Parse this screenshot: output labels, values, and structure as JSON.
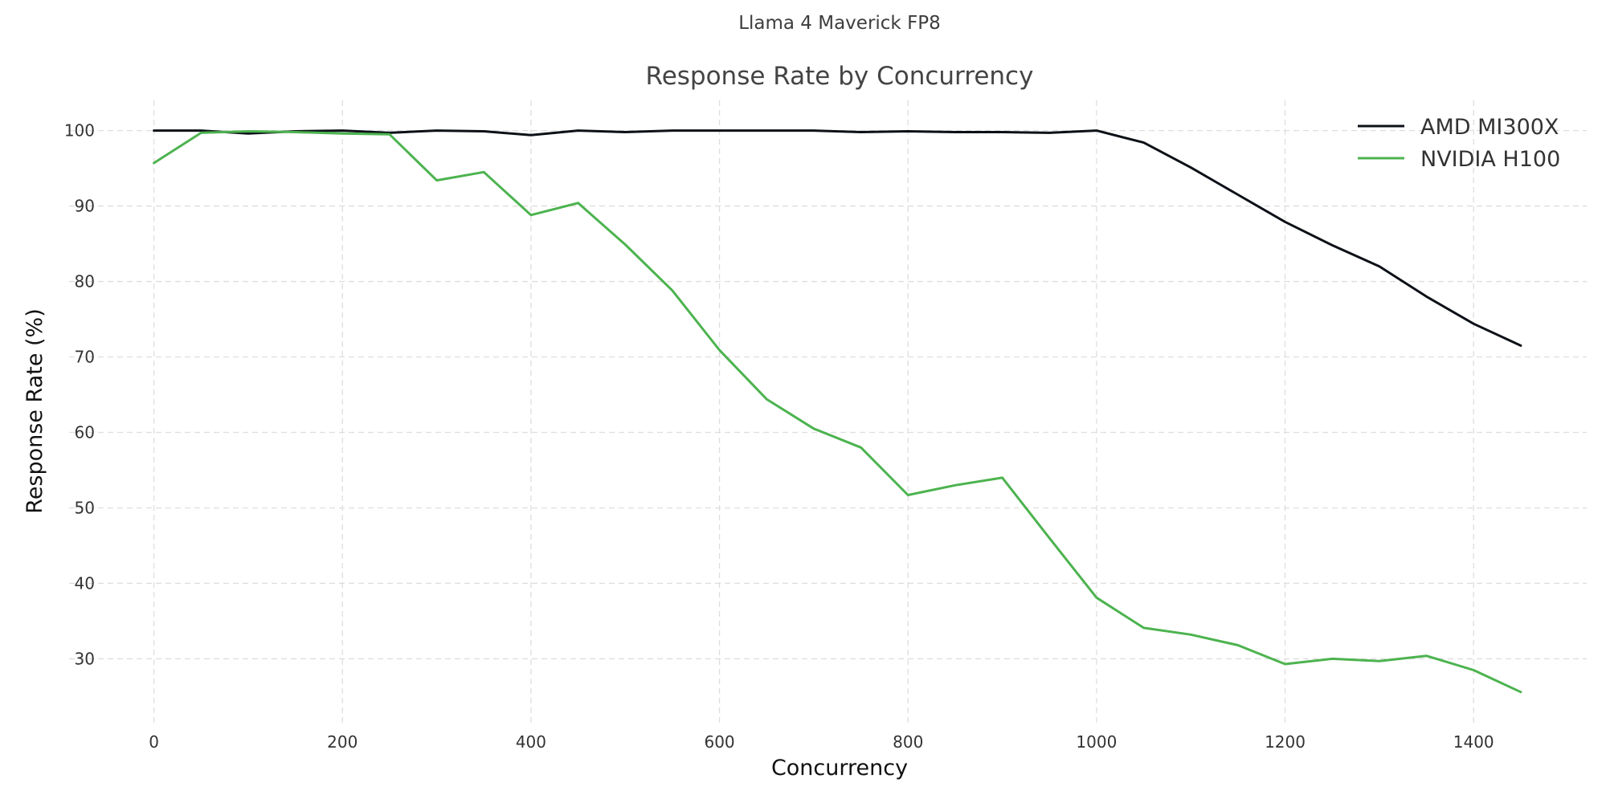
{
  "chart_data": {
    "type": "line",
    "suptitle": "Llama 4 Maverick FP8",
    "title": "Response Rate by Concurrency",
    "xlabel": "Concurrency",
    "ylabel": "Response Rate (%)",
    "xlim": [
      -90,
      1520
    ],
    "ylim": [
      21,
      104
    ],
    "xticks": [
      0,
      200,
      400,
      600,
      800,
      1000,
      1200,
      1400
    ],
    "yticks": [
      30,
      40,
      50,
      60,
      70,
      80,
      90,
      100
    ],
    "grid": true,
    "legend_position": "top-right",
    "x": [
      0,
      50,
      100,
      150,
      200,
      250,
      300,
      350,
      400,
      450,
      500,
      550,
      600,
      650,
      700,
      750,
      800,
      850,
      900,
      950,
      1000,
      1050,
      1100,
      1150,
      1200,
      1250,
      1300,
      1350,
      1400,
      1450
    ],
    "series": [
      {
        "name": "AMD MI300X",
        "color": "#0d1117",
        "values": [
          100,
          100,
          99.6,
          99.9,
          100,
          99.7,
          100,
          99.9,
          99.4,
          100,
          99.8,
          100,
          100,
          100,
          100,
          99.8,
          99.9,
          99.8,
          99.8,
          99.7,
          100,
          98.4,
          95.1,
          91.5,
          87.9,
          84.8,
          82.0,
          78.0,
          74.4,
          71.5
        ]
      },
      {
        "name": "NVIDIA H100",
        "color": "#4cb34f",
        "values": [
          95.7,
          99.7,
          99.9,
          99.8,
          99.6,
          99.5,
          93.4,
          94.5,
          88.8,
          90.4,
          84.9,
          78.8,
          70.9,
          64.4,
          60.5,
          58.0,
          51.7,
          53.0,
          54.0,
          46.0,
          38.1,
          34.1,
          33.2,
          31.8,
          29.3,
          30.0,
          29.7,
          30.4,
          28.5,
          25.6
        ]
      }
    ]
  }
}
